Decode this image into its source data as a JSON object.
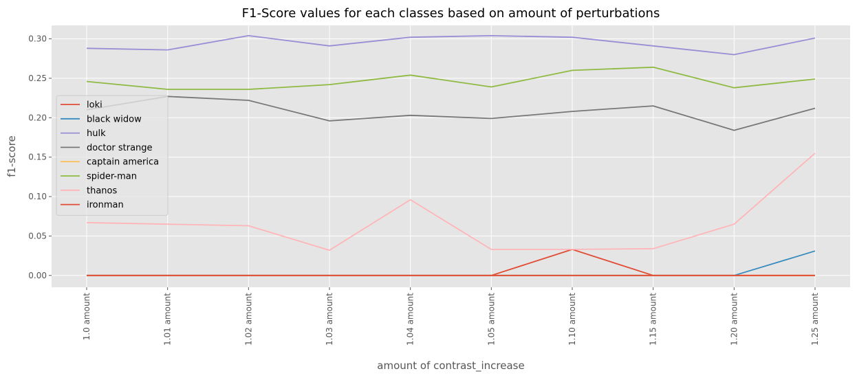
{
  "chart_data": {
    "type": "line",
    "title": "F1-Score values for each classes based on amount of perturbations",
    "xlabel": "amount of contrast_increase",
    "ylabel": "f1-score",
    "categories": [
      "1.0 amount",
      "1.01 amount",
      "1.02 amount",
      "1.03 amount",
      "1.04 amount",
      "1.05 amount",
      "1.10 amount",
      "1.15 amount",
      "1.20 amount",
      "1.25 amount"
    ],
    "ylim": [
      -0.015,
      0.317
    ],
    "yticks": [
      0.0,
      0.05,
      0.1,
      0.15,
      0.2,
      0.25,
      0.3
    ],
    "ytick_labels": [
      "0.00",
      "0.05",
      "0.10",
      "0.15",
      "0.20",
      "0.25",
      "0.30"
    ],
    "grid": true,
    "legend_position": "center-left",
    "series": [
      {
        "name": "loki",
        "color": "#E24A33",
        "values": [
          0,
          0,
          0,
          0,
          0,
          0,
          0.033,
          0,
          0,
          0
        ]
      },
      {
        "name": "black widow",
        "color": "#348ABD",
        "values": [
          0,
          0,
          0,
          0,
          0,
          0,
          0,
          0,
          0,
          0.031
        ]
      },
      {
        "name": "hulk",
        "color": "#988ED5",
        "values": [
          0.288,
          0.286,
          0.304,
          0.291,
          0.302,
          0.304,
          0.302,
          0.291,
          0.28,
          0.301
        ]
      },
      {
        "name": "doctor strange",
        "color": "#777777",
        "values": [
          0.21,
          0.227,
          0.222,
          0.196,
          0.203,
          0.199,
          0.208,
          0.215,
          0.184,
          0.212
        ]
      },
      {
        "name": "captain america",
        "color": "#FBC15E",
        "values": [
          0,
          0,
          0,
          0,
          0,
          0,
          0,
          0,
          0,
          0
        ]
      },
      {
        "name": "spider-man",
        "color": "#8EBA42",
        "values": [
          0.246,
          0.236,
          0.236,
          0.242,
          0.254,
          0.239,
          0.26,
          0.264,
          0.238,
          0.249
        ]
      },
      {
        "name": "thanos",
        "color": "#FFB5B8",
        "values": [
          0.067,
          0.065,
          0.063,
          0.032,
          0.096,
          0.033,
          0.033,
          0.034,
          0.065,
          0.155
        ]
      },
      {
        "name": "ironman",
        "color": "#E24A33",
        "values": [
          0,
          0,
          0,
          0,
          0,
          0,
          0,
          0,
          0,
          0
        ]
      }
    ]
  }
}
